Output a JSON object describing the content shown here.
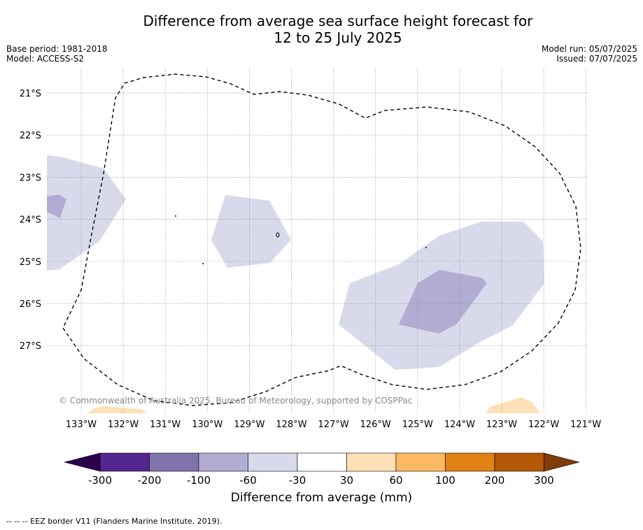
{
  "title": {
    "line1": "Difference from average sea surface height forecast for",
    "line2": "12 to 25 July 2025"
  },
  "meta": {
    "base_period": "Base period: 1981-2018",
    "model": "Model: ACCESS-S2",
    "model_run": "Model run: 05/07/2025",
    "issued": "Issued: 07/07/2025"
  },
  "map": {
    "lat_labels": [
      "21°S",
      "22°S",
      "23°S",
      "24°S",
      "25°S",
      "26°S",
      "27°S"
    ],
    "lon_labels": [
      "133°W",
      "132°W",
      "131°W",
      "130°W",
      "129°W",
      "128°W",
      "127°W",
      "126°W",
      "125°W",
      "124°W",
      "123°W",
      "122°W",
      "121°W"
    ],
    "copyright": "© Commonwealth of Australia 2025, Bureau of Meteorology, supported by COSPPac"
  },
  "colorbar": {
    "title": "Difference from average (mm)",
    "tick_labels": [
      "-300",
      "-200",
      "-100",
      "-60",
      "-30",
      "30",
      "60",
      "100",
      "200",
      "300"
    ],
    "colors": [
      "#54278f",
      "#8073ac",
      "#b2abd2",
      "#d8daeb",
      "#ffffff",
      "#fee0b6",
      "#fdb863",
      "#e08214",
      "#b35806"
    ],
    "under_color": "#2d004b",
    "over_color": "#7f3b08"
  },
  "footnote": "--  --  -- EEZ border V11 (Flanders Marine Institute, 2019)."
}
